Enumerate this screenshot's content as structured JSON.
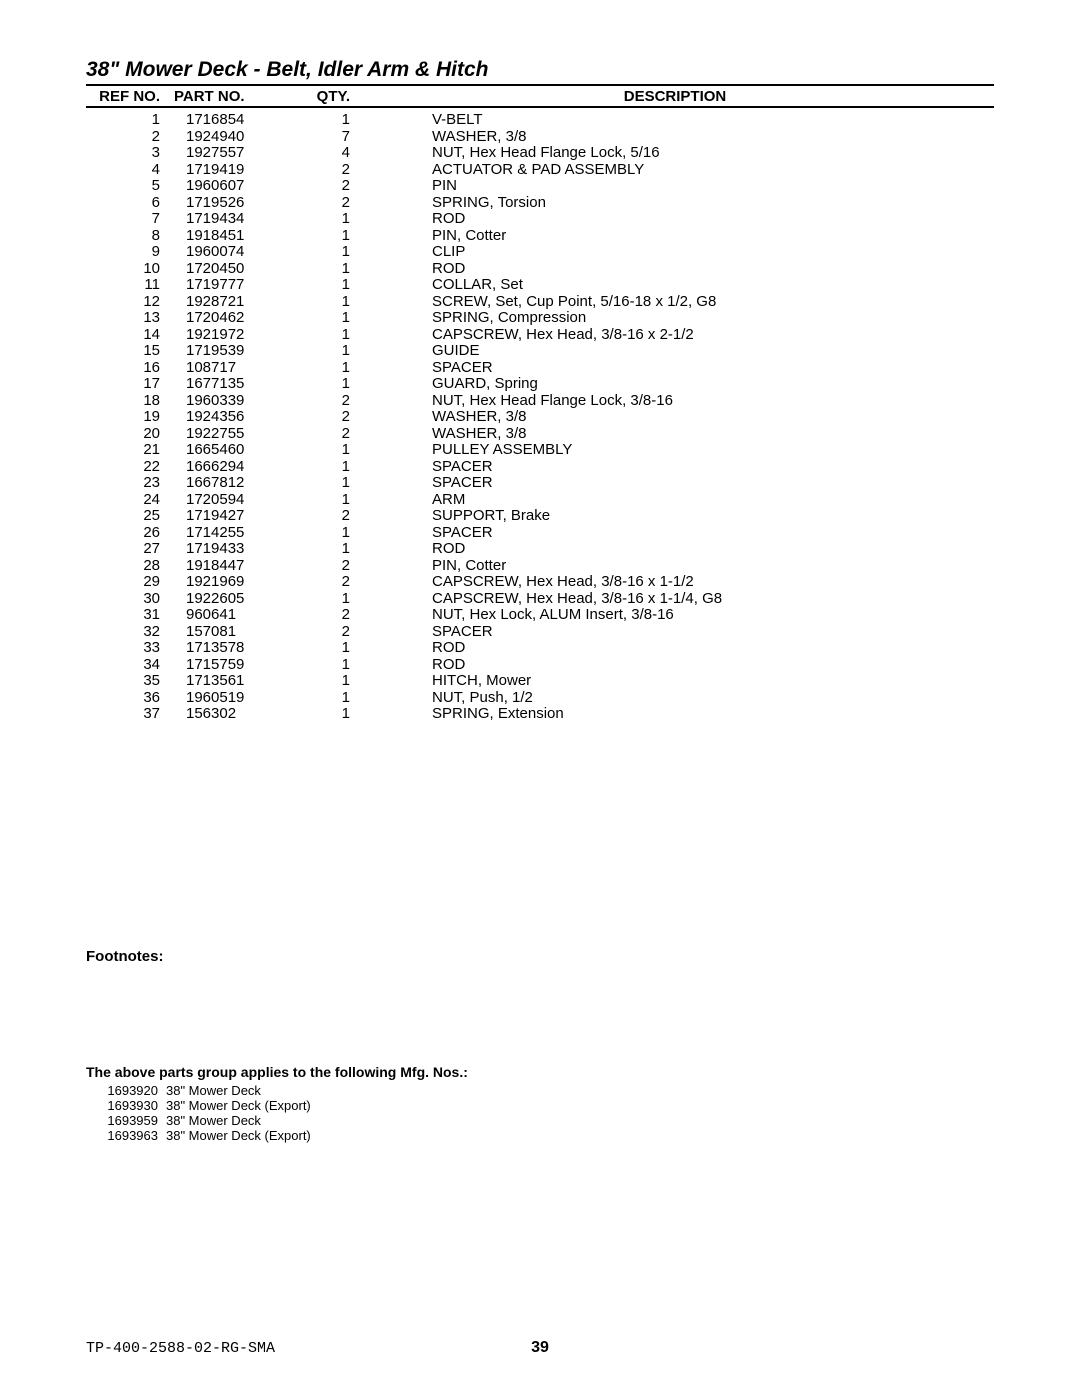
{
  "title": "38\" Mower Deck - Belt, Idler Arm & Hitch",
  "header": {
    "ref": "REF NO.",
    "part": "PART NO.",
    "qty": "QTY.",
    "desc": "DESCRIPTION"
  },
  "parts": [
    {
      "ref": "1",
      "part": "1716854",
      "qty": "1",
      "desc": "V-BELT"
    },
    {
      "ref": "2",
      "part": "1924940",
      "qty": "7",
      "desc": "WASHER, 3/8"
    },
    {
      "ref": "3",
      "part": "1927557",
      "qty": "4",
      "desc": "NUT, Hex Head Flange Lock, 5/16"
    },
    {
      "ref": "4",
      "part": "1719419",
      "qty": "2",
      "desc": "ACTUATOR & PAD ASSEMBLY"
    },
    {
      "ref": "5",
      "part": "1960607",
      "qty": "2",
      "desc": "PIN"
    },
    {
      "ref": "6",
      "part": "1719526",
      "qty": "2",
      "desc": "SPRING, Torsion"
    },
    {
      "ref": "7",
      "part": "1719434",
      "qty": "1",
      "desc": "ROD"
    },
    {
      "ref": "8",
      "part": "1918451",
      "qty": "1",
      "desc": "PIN, Cotter"
    },
    {
      "ref": "9",
      "part": "1960074",
      "qty": "1",
      "desc": "CLIP"
    },
    {
      "ref": "10",
      "part": "1720450",
      "qty": "1",
      "desc": "ROD"
    },
    {
      "ref": "11",
      "part": "1719777",
      "qty": "1",
      "desc": "COLLAR, Set"
    },
    {
      "ref": "12",
      "part": "1928721",
      "qty": "1",
      "desc": "SCREW, Set, Cup Point, 5/16-18 x 1/2, G8"
    },
    {
      "ref": "13",
      "part": "1720462",
      "qty": "1",
      "desc": "SPRING, Compression"
    },
    {
      "ref": "14",
      "part": "1921972",
      "qty": "1",
      "desc": "CAPSCREW, Hex Head, 3/8-16 x 2-1/2"
    },
    {
      "ref": "15",
      "part": "1719539",
      "qty": "1",
      "desc": "GUIDE"
    },
    {
      "ref": "16",
      "part": "108717",
      "qty": "1",
      "desc": "SPACER"
    },
    {
      "ref": "17",
      "part": "1677135",
      "qty": "1",
      "desc": "GUARD, Spring"
    },
    {
      "ref": "18",
      "part": "1960339",
      "qty": "2",
      "desc": "NUT, Hex Head Flange Lock, 3/8-16"
    },
    {
      "ref": "19",
      "part": "1924356",
      "qty": "2",
      "desc": "WASHER, 3/8"
    },
    {
      "ref": "20",
      "part": "1922755",
      "qty": "2",
      "desc": "WASHER, 3/8"
    },
    {
      "ref": "21",
      "part": "1665460",
      "qty": "1",
      "desc": "PULLEY ASSEMBLY"
    },
    {
      "ref": "22",
      "part": "1666294",
      "qty": "1",
      "desc": "SPACER"
    },
    {
      "ref": "23",
      "part": "1667812",
      "qty": "1",
      "desc": "SPACER"
    },
    {
      "ref": "24",
      "part": "1720594",
      "qty": "1",
      "desc": "ARM"
    },
    {
      "ref": "25",
      "part": "1719427",
      "qty": "2",
      "desc": "SUPPORT, Brake"
    },
    {
      "ref": "26",
      "part": "1714255",
      "qty": "1",
      "desc": "SPACER"
    },
    {
      "ref": "27",
      "part": "1719433",
      "qty": "1",
      "desc": "ROD"
    },
    {
      "ref": "28",
      "part": "1918447",
      "qty": "2",
      "desc": "PIN, Cotter"
    },
    {
      "ref": "29",
      "part": "1921969",
      "qty": "2",
      "desc": "CAPSCREW, Hex Head, 3/8-16 x 1-1/2"
    },
    {
      "ref": "30",
      "part": "1922605",
      "qty": "1",
      "desc": "CAPSCREW, Hex Head, 3/8-16 x 1-1/4, G8"
    },
    {
      "ref": "31",
      "part": "960641",
      "qty": "2",
      "desc": "NUT, Hex Lock, ALUM Insert, 3/8-16"
    },
    {
      "ref": "32",
      "part": "157081",
      "qty": "2",
      "desc": "SPACER"
    },
    {
      "ref": "33",
      "part": "1713578",
      "qty": "1",
      "desc": "ROD"
    },
    {
      "ref": "34",
      "part": "1715759",
      "qty": "1",
      "desc": "ROD"
    },
    {
      "ref": "35",
      "part": "1713561",
      "qty": "1",
      "desc": "HITCH, Mower"
    },
    {
      "ref": "36",
      "part": "1960519",
      "qty": "1",
      "desc": "NUT, Push, 1/2"
    },
    {
      "ref": "37",
      "part": "156302",
      "qty": "1",
      "desc": "SPRING, Extension"
    }
  ],
  "footnotes_label": "Footnotes:",
  "mfg": {
    "title": "The above parts group applies to the following Mfg. Nos.:",
    "rows": [
      {
        "no": "1693920",
        "desc": "38\" Mower Deck"
      },
      {
        "no": "1693930",
        "desc": "38\" Mower Deck (Export)"
      },
      {
        "no": "1693959",
        "desc": "38\" Mower Deck"
      },
      {
        "no": "1693963",
        "desc": "38\" Mower Deck (Export)"
      }
    ]
  },
  "doc_id": "TP-400-2588-02-RG-SMA",
  "page_no": "39"
}
